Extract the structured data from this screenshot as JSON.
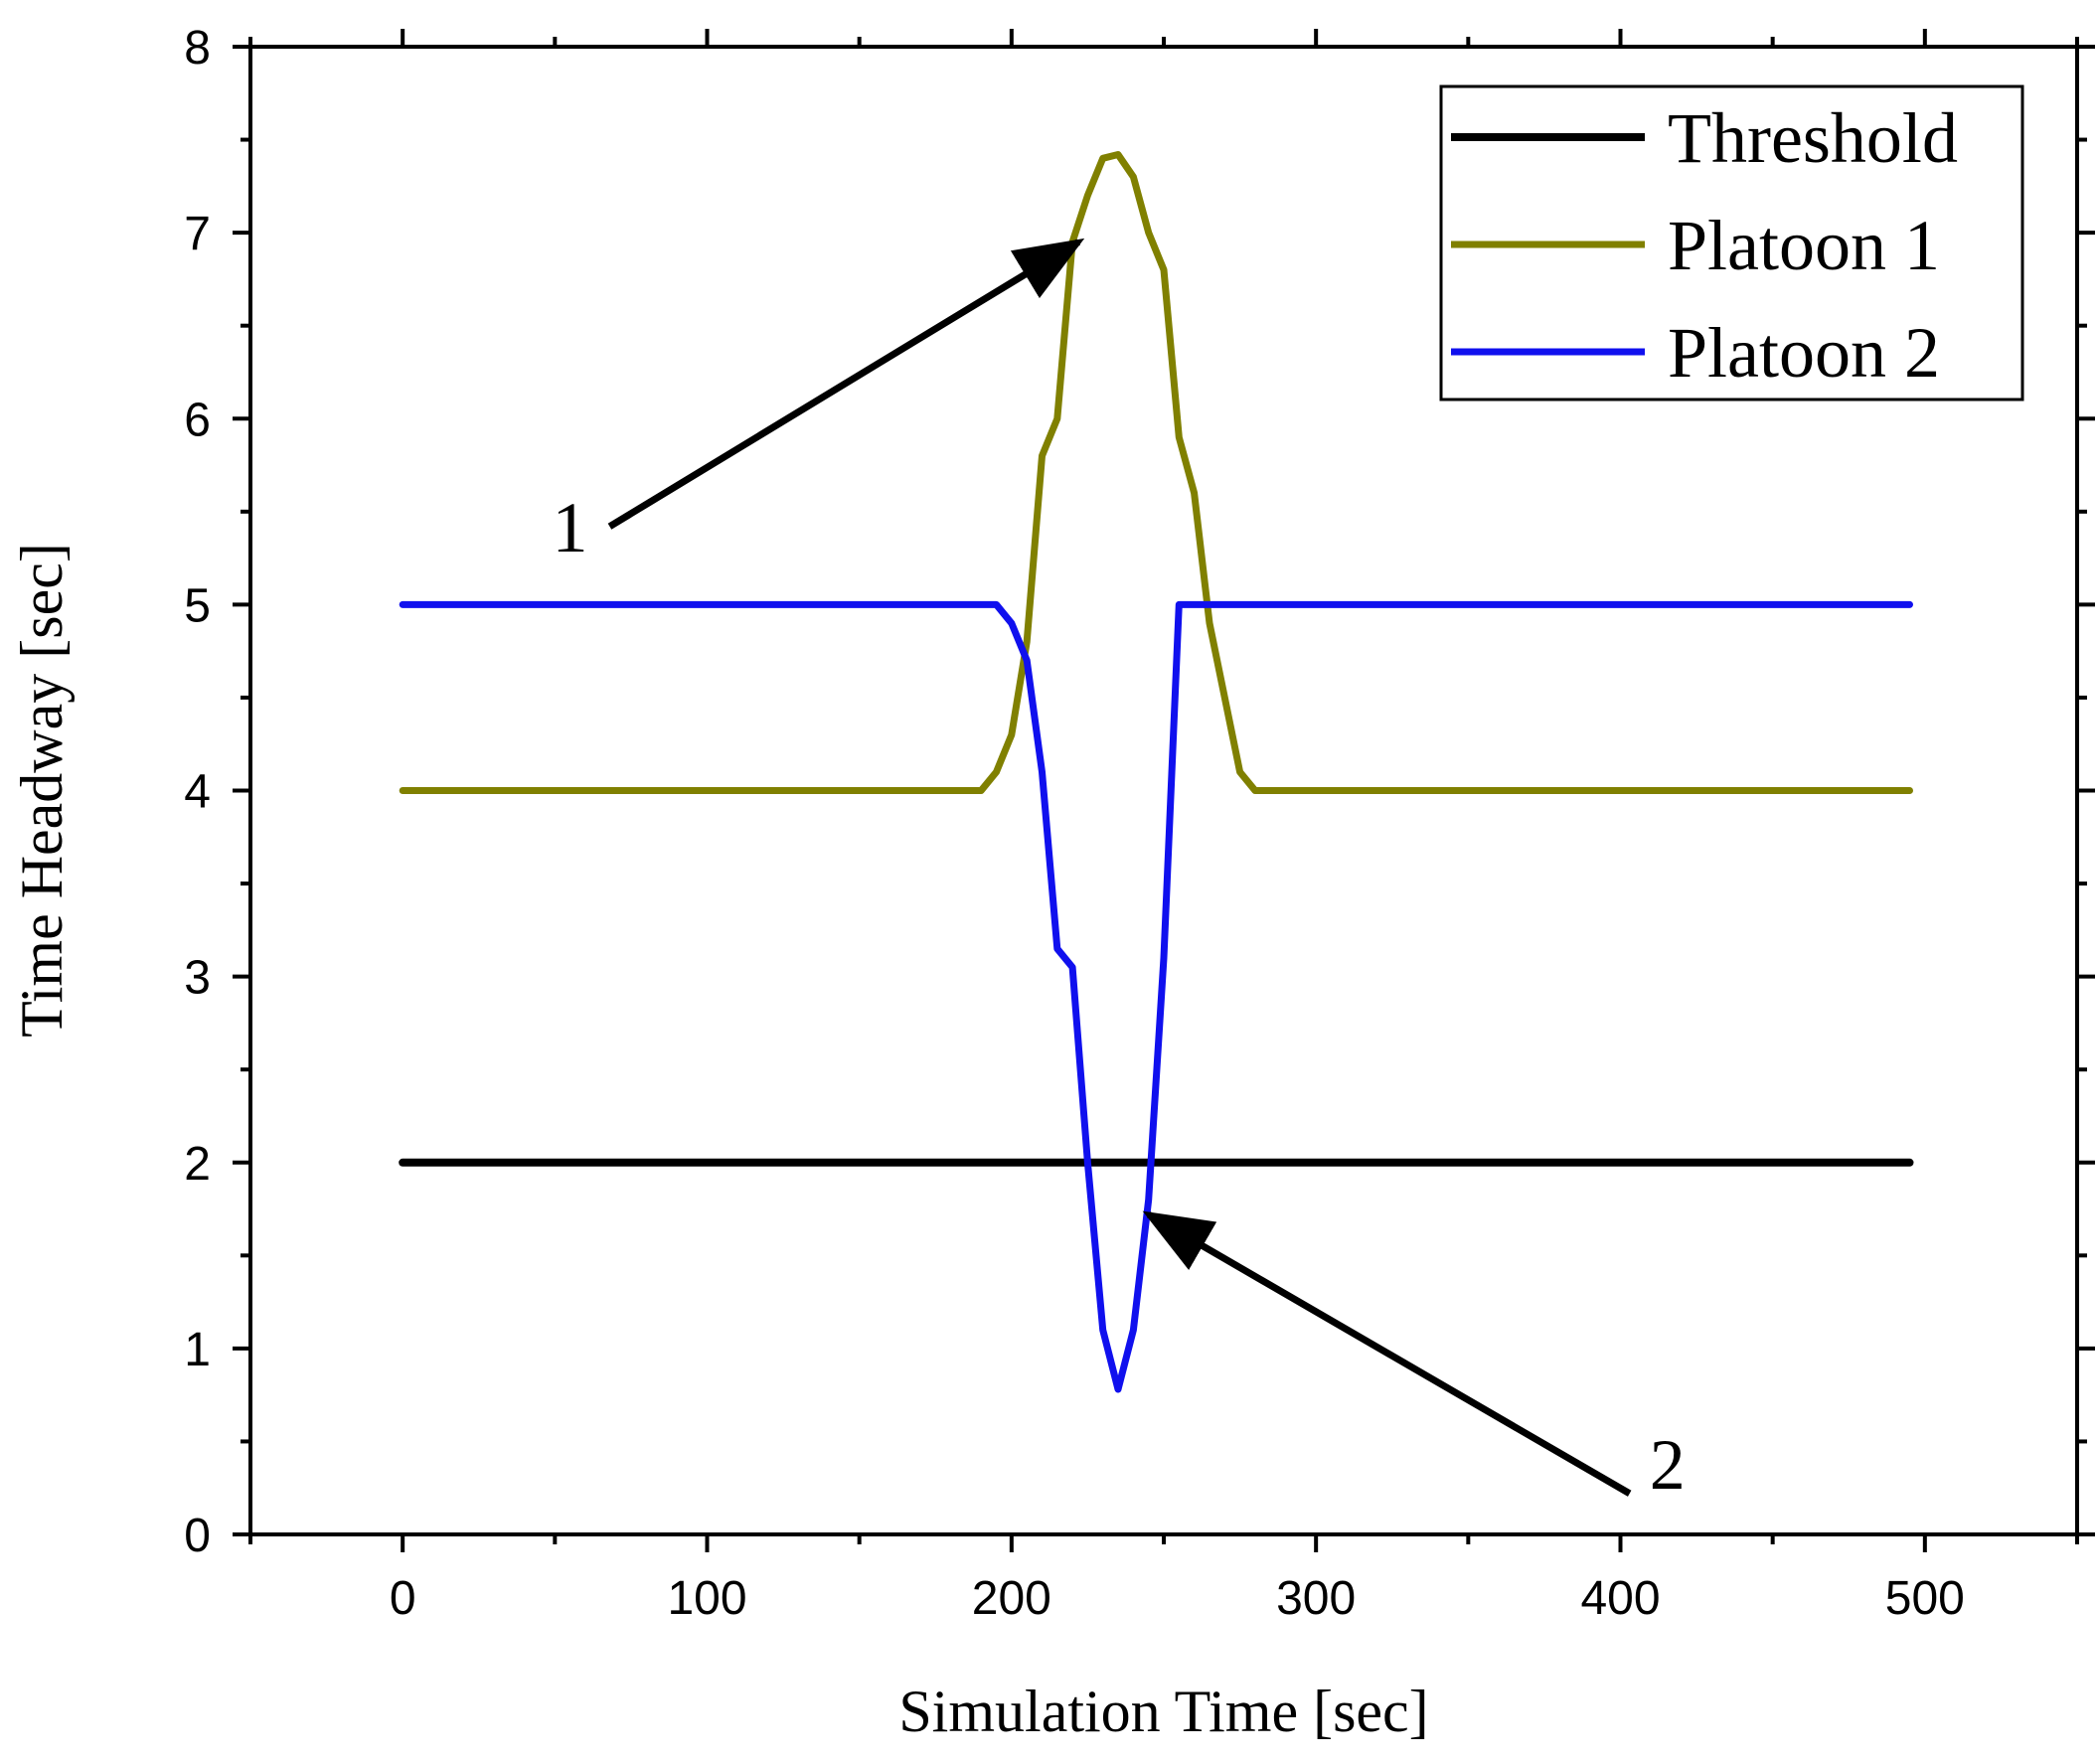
{
  "chart_data": {
    "type": "line",
    "title": "",
    "xlabel": "Simulation Time [sec]",
    "ylabel": "Time Headway [sec]",
    "xlim": [
      -50,
      550
    ],
    "ylim": [
      0,
      8
    ],
    "xticks": [
      0,
      100,
      200,
      300,
      400,
      500
    ],
    "yticks": [
      0,
      1,
      2,
      3,
      4,
      5,
      6,
      7,
      8
    ],
    "grid": false,
    "legend_position": "top-right",
    "colors": {
      "threshold": "#000000",
      "platoon1": "#808000",
      "platoon2": "#1010ee"
    },
    "series": [
      {
        "name": "Threshold",
        "x": [
          0,
          495
        ],
        "y": [
          2,
          2
        ]
      },
      {
        "name": "Platoon 1",
        "x": [
          0,
          185,
          190,
          195,
          200,
          205,
          210,
          215,
          220,
          225,
          230,
          235,
          240,
          245,
          250,
          255,
          260,
          265,
          270,
          275,
          280,
          285,
          495
        ],
        "y": [
          4,
          4,
          4,
          4.1,
          4.3,
          4.8,
          5.8,
          6.0,
          6.95,
          7.2,
          7.4,
          7.42,
          7.3,
          7.0,
          6.8,
          5.9,
          5.6,
          4.9,
          4.5,
          4.1,
          4.0,
          4.0,
          4.0
        ]
      },
      {
        "name": "Platoon 2",
        "x": [
          0,
          195,
          200,
          205,
          210,
          215,
          220,
          225,
          230,
          235,
          240,
          245,
          250,
          255,
          260,
          495
        ],
        "y": [
          5,
          5,
          4.9,
          4.7,
          4.1,
          3.15,
          3.05,
          2.0,
          1.1,
          0.78,
          1.1,
          1.8,
          3.1,
          5.0,
          5.0,
          5.0
        ]
      }
    ],
    "annotations": [
      {
        "text": "1",
        "arrow_from": [
          68,
          5.42
        ],
        "arrow_to": [
          222,
          6.95
        ]
      },
      {
        "text": "2",
        "arrow_from": [
          403,
          0.22
        ],
        "arrow_to": [
          245,
          1.72
        ]
      }
    ]
  }
}
